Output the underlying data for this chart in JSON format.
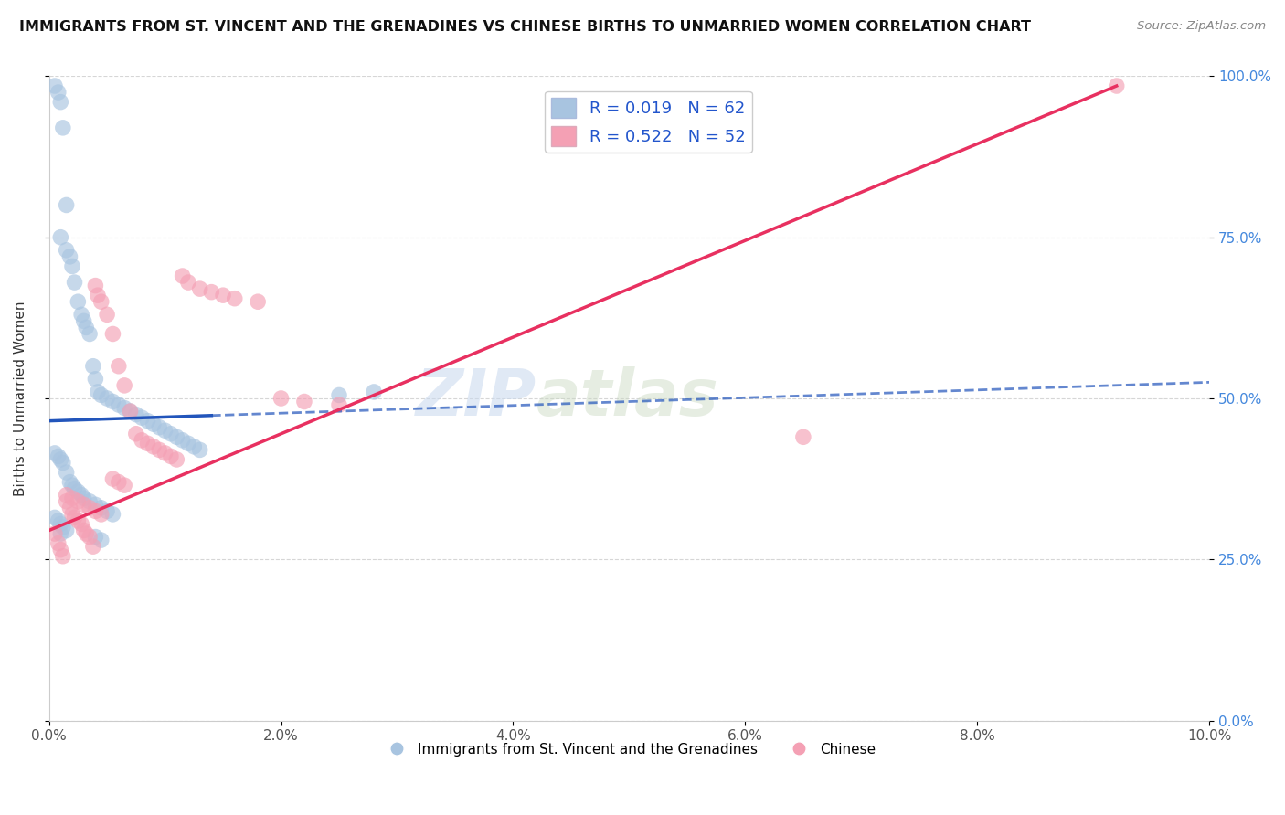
{
  "title": "IMMIGRANTS FROM ST. VINCENT AND THE GRENADINES VS CHINESE BIRTHS TO UNMARRIED WOMEN CORRELATION CHART",
  "source": "Source: ZipAtlas.com",
  "ylabel": "Births to Unmarried Women",
  "x_ticks": [
    0.0,
    2.0,
    4.0,
    6.0,
    8.0,
    10.0
  ],
  "x_tick_labels": [
    "0.0%",
    "2.0%",
    "4.0%",
    "6.0%",
    "8.0%",
    "10.0%"
  ],
  "y_ticks_right": [
    0.0,
    25.0,
    50.0,
    75.0,
    100.0
  ],
  "y_tick_labels_right": [
    "0.0%",
    "25.0%",
    "50.0%",
    "75.0%",
    "100.0%"
  ],
  "xlim": [
    0.0,
    10.0
  ],
  "ylim": [
    0.0,
    100.0
  ],
  "blue_color": "#a8c4e0",
  "pink_color": "#f4a0b4",
  "blue_line_color": "#2255bb",
  "pink_line_color": "#e83060",
  "blue_R": 0.019,
  "blue_N": 62,
  "pink_R": 0.522,
  "pink_N": 52,
  "watermark_zip": "ZIP",
  "watermark_atlas": "atlas",
  "legend_label_blue": "Immigrants from St. Vincent and the Grenadines",
  "legend_label_pink": "Chinese",
  "blue_line_x0": 0.0,
  "blue_line_y0": 46.5,
  "blue_line_x1": 10.0,
  "blue_line_y1": 52.5,
  "blue_line_solid_end": 1.4,
  "pink_line_x0": 0.0,
  "pink_line_y0": 29.5,
  "pink_line_x1": 9.2,
  "pink_line_y1": 98.5,
  "blue_scatter_x": [
    0.05,
    0.08,
    0.1,
    0.12,
    0.15,
    0.1,
    0.15,
    0.18,
    0.2,
    0.22,
    0.25,
    0.28,
    0.3,
    0.32,
    0.35,
    0.38,
    0.4,
    0.42,
    0.45,
    0.5,
    0.55,
    0.6,
    0.65,
    0.7,
    0.75,
    0.8,
    0.85,
    0.9,
    0.95,
    1.0,
    1.05,
    1.1,
    1.15,
    1.2,
    1.25,
    1.3,
    0.05,
    0.08,
    0.1,
    0.12,
    0.15,
    0.18,
    0.2,
    0.22,
    0.25,
    0.28,
    0.3,
    0.35,
    0.4,
    0.45,
    0.5,
    0.55,
    0.05,
    0.08,
    0.1,
    0.12,
    0.15,
    0.1,
    0.4,
    0.45,
    2.5,
    2.8
  ],
  "blue_scatter_y": [
    98.5,
    97.5,
    96.0,
    92.0,
    80.0,
    75.0,
    73.0,
    72.0,
    70.5,
    68.0,
    65.0,
    63.0,
    62.0,
    61.0,
    60.0,
    55.0,
    53.0,
    51.0,
    50.5,
    50.0,
    49.5,
    49.0,
    48.5,
    48.0,
    47.5,
    47.0,
    46.5,
    46.0,
    45.5,
    45.0,
    44.5,
    44.0,
    43.5,
    43.0,
    42.5,
    42.0,
    41.5,
    41.0,
    40.5,
    40.0,
    38.5,
    37.0,
    36.5,
    36.0,
    35.5,
    35.0,
    34.5,
    34.0,
    33.5,
    33.0,
    32.5,
    32.0,
    31.5,
    31.0,
    30.5,
    30.0,
    29.5,
    29.0,
    28.5,
    28.0,
    50.5,
    51.0
  ],
  "pink_scatter_x": [
    0.05,
    0.08,
    0.1,
    0.12,
    0.15,
    0.18,
    0.2,
    0.22,
    0.25,
    0.28,
    0.3,
    0.32,
    0.35,
    0.38,
    0.4,
    0.42,
    0.45,
    0.5,
    0.55,
    0.6,
    0.65,
    0.7,
    0.75,
    0.8,
    0.85,
    0.9,
    0.95,
    1.0,
    1.05,
    1.1,
    1.15,
    1.2,
    1.3,
    1.4,
    1.5,
    1.6,
    1.8,
    2.0,
    2.2,
    2.5,
    0.15,
    0.2,
    0.25,
    0.3,
    0.35,
    0.4,
    0.45,
    0.55,
    0.6,
    0.65,
    6.5,
    9.2
  ],
  "pink_scatter_y": [
    29.0,
    27.5,
    26.5,
    25.5,
    34.0,
    33.0,
    32.0,
    31.5,
    31.0,
    30.5,
    29.5,
    29.0,
    28.5,
    27.0,
    67.5,
    66.0,
    65.0,
    63.0,
    60.0,
    55.0,
    52.0,
    48.0,
    44.5,
    43.5,
    43.0,
    42.5,
    42.0,
    41.5,
    41.0,
    40.5,
    69.0,
    68.0,
    67.0,
    66.5,
    66.0,
    65.5,
    65.0,
    50.0,
    49.5,
    49.0,
    35.0,
    34.5,
    34.0,
    33.5,
    33.0,
    32.5,
    32.0,
    37.5,
    37.0,
    36.5,
    44.0,
    98.5
  ]
}
